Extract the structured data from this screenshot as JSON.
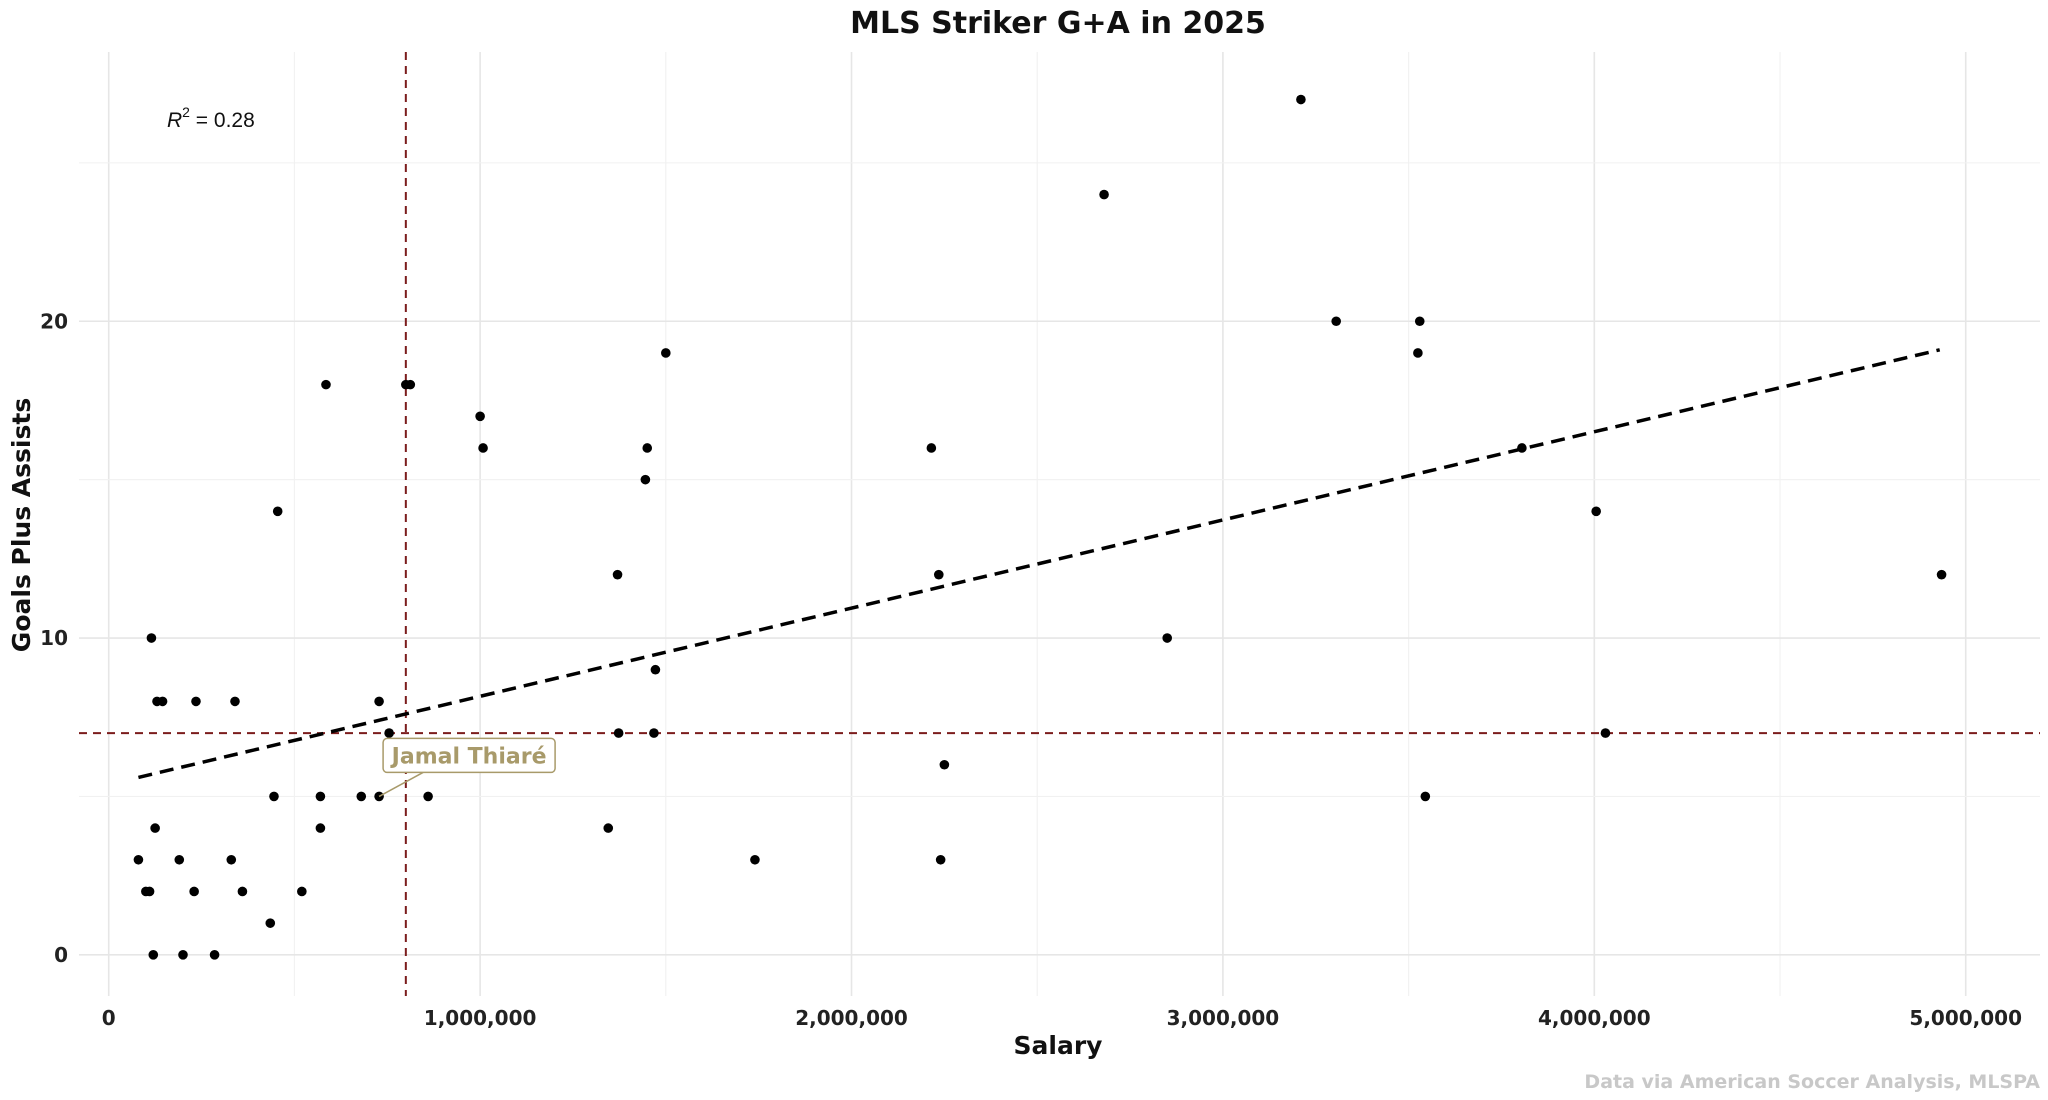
{
  "chart_data": {
    "type": "scatter",
    "title": "MLS Striker G+A in 2025",
    "xlabel": "Salary",
    "ylabel": "Goals Plus Assists",
    "caption": "Data via American Soccer Analysis, MLSPA",
    "xlim": [
      -80000,
      5200000
    ],
    "ylim": [
      -1.3,
      28.5
    ],
    "x_ticks": [
      0,
      1000000,
      2000000,
      3000000,
      4000000,
      5000000
    ],
    "x_tick_labels": [
      "0",
      "1,000,000",
      "2,000,000",
      "3,000,000",
      "4,000,000",
      "5,000,000"
    ],
    "y_ticks": [
      0,
      10,
      20
    ],
    "y_tick_labels": [
      "0",
      "10",
      "20"
    ],
    "grid": true,
    "r_squared_label": {
      "prefix": "R",
      "sup": "2",
      "value": " = 0.28"
    },
    "points": [
      {
        "x": 80000,
        "y": 3
      },
      {
        "x": 100000,
        "y": 2
      },
      {
        "x": 110000,
        "y": 2
      },
      {
        "x": 115000,
        "y": 10
      },
      {
        "x": 120000,
        "y": 0
      },
      {
        "x": 125000,
        "y": 4
      },
      {
        "x": 130000,
        "y": 8
      },
      {
        "x": 145000,
        "y": 8
      },
      {
        "x": 190000,
        "y": 3
      },
      {
        "x": 200000,
        "y": 0
      },
      {
        "x": 230000,
        "y": 2
      },
      {
        "x": 235000,
        "y": 8
      },
      {
        "x": 285000,
        "y": 0
      },
      {
        "x": 330000,
        "y": 3
      },
      {
        "x": 340000,
        "y": 8
      },
      {
        "x": 360000,
        "y": 2
      },
      {
        "x": 435000,
        "y": 1
      },
      {
        "x": 445000,
        "y": 5
      },
      {
        "x": 455000,
        "y": 14
      },
      {
        "x": 520000,
        "y": 2
      },
      {
        "x": 570000,
        "y": 5
      },
      {
        "x": 570000,
        "y": 4
      },
      {
        "x": 585000,
        "y": 18
      },
      {
        "x": 680000,
        "y": 5
      },
      {
        "x": 728000,
        "y": 8
      },
      {
        "x": 728000,
        "y": 5
      },
      {
        "x": 755000,
        "y": 7
      },
      {
        "x": 800000,
        "y": 18
      },
      {
        "x": 812000,
        "y": 18
      },
      {
        "x": 860000,
        "y": 5
      },
      {
        "x": 1000000,
        "y": 17
      },
      {
        "x": 1008000,
        "y": 16
      },
      {
        "x": 1345000,
        "y": 4
      },
      {
        "x": 1370000,
        "y": 12
      },
      {
        "x": 1373000,
        "y": 7
      },
      {
        "x": 1445000,
        "y": 15
      },
      {
        "x": 1450000,
        "y": 16
      },
      {
        "x": 1468000,
        "y": 7
      },
      {
        "x": 1472000,
        "y": 9
      },
      {
        "x": 1500000,
        "y": 19
      },
      {
        "x": 1740000,
        "y": 3
      },
      {
        "x": 2215000,
        "y": 16
      },
      {
        "x": 2235000,
        "y": 12
      },
      {
        "x": 2240000,
        "y": 3
      },
      {
        "x": 2250000,
        "y": 6
      },
      {
        "x": 2680000,
        "y": 24
      },
      {
        "x": 2850000,
        "y": 10
      },
      {
        "x": 3210000,
        "y": 27
      },
      {
        "x": 3305000,
        "y": 20
      },
      {
        "x": 3525000,
        "y": 19
      },
      {
        "x": 3530000,
        "y": 20
      },
      {
        "x": 3545000,
        "y": 5
      },
      {
        "x": 3805000,
        "y": 16
      },
      {
        "x": 4005000,
        "y": 14
      },
      {
        "x": 4030000,
        "y": 7
      },
      {
        "x": 4935000,
        "y": 12
      }
    ],
    "trend_line": {
      "x": [
        80000,
        4930000
      ],
      "y": [
        5.6,
        19.1
      ],
      "color": "#000000"
    },
    "reference_lines": {
      "vertical_x": 800000,
      "horizontal_y": 7,
      "color": "#7b1c1c"
    },
    "highlight": {
      "label": "Jamal Thiaré",
      "x": 728000,
      "y": 5,
      "color": "#a89a6a"
    }
  }
}
